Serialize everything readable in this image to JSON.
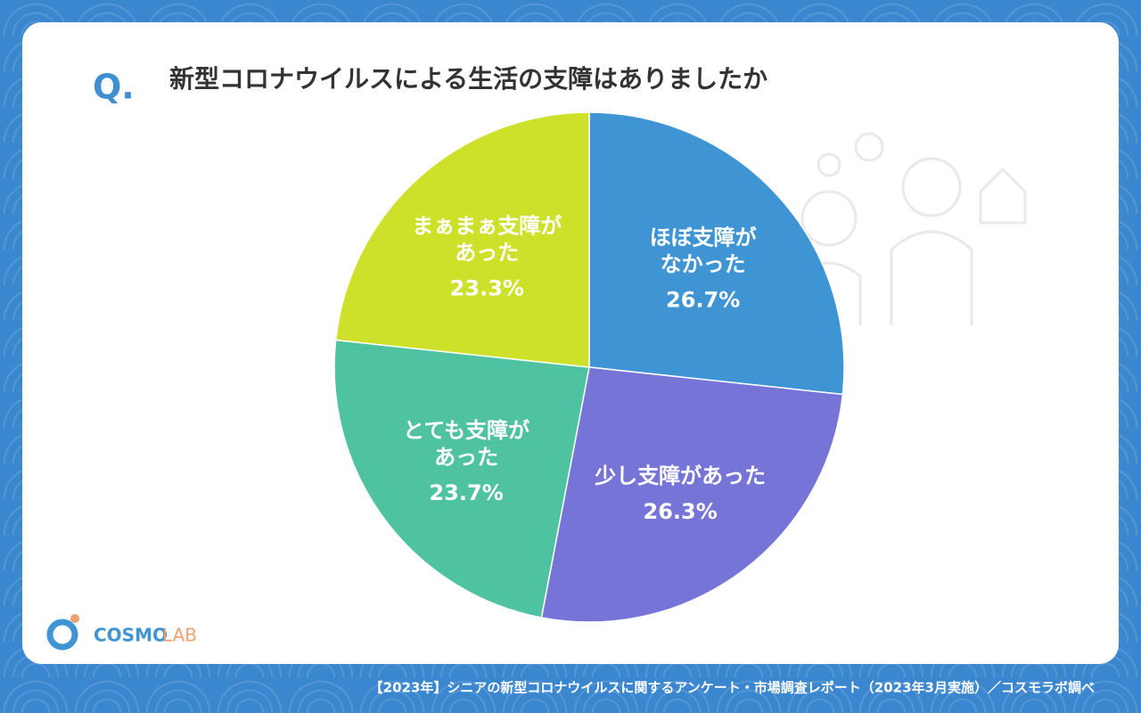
{
  "header": {
    "mark": "Q.",
    "title": "新型コロナウイルスによる生活の支障はありましたか"
  },
  "chart_data": {
    "type": "pie",
    "categories": [
      [
        "ほぼ支障が",
        "なかった"
      ],
      [
        "少し支障があった"
      ],
      [
        "とても支障が",
        "あった"
      ],
      [
        "まぁまぁ支障が",
        "あった"
      ]
    ],
    "values": [
      26.7,
      26.3,
      23.7,
      23.3
    ],
    "value_labels": [
      "26.7%",
      "26.3%",
      "23.7%",
      "23.3%"
    ],
    "colors": [
      "#3f95d4",
      "#7774d8",
      "#4fc3a1",
      "#cde02a"
    ]
  },
  "logo": {
    "text": "COSMO",
    "suffix": "LAB"
  },
  "footer": {
    "text": "【2023年】シニアの新型コロナウイルスに関するアンケート・市場調査レポート（2023年3月実施）／コスモラボ調べ"
  }
}
